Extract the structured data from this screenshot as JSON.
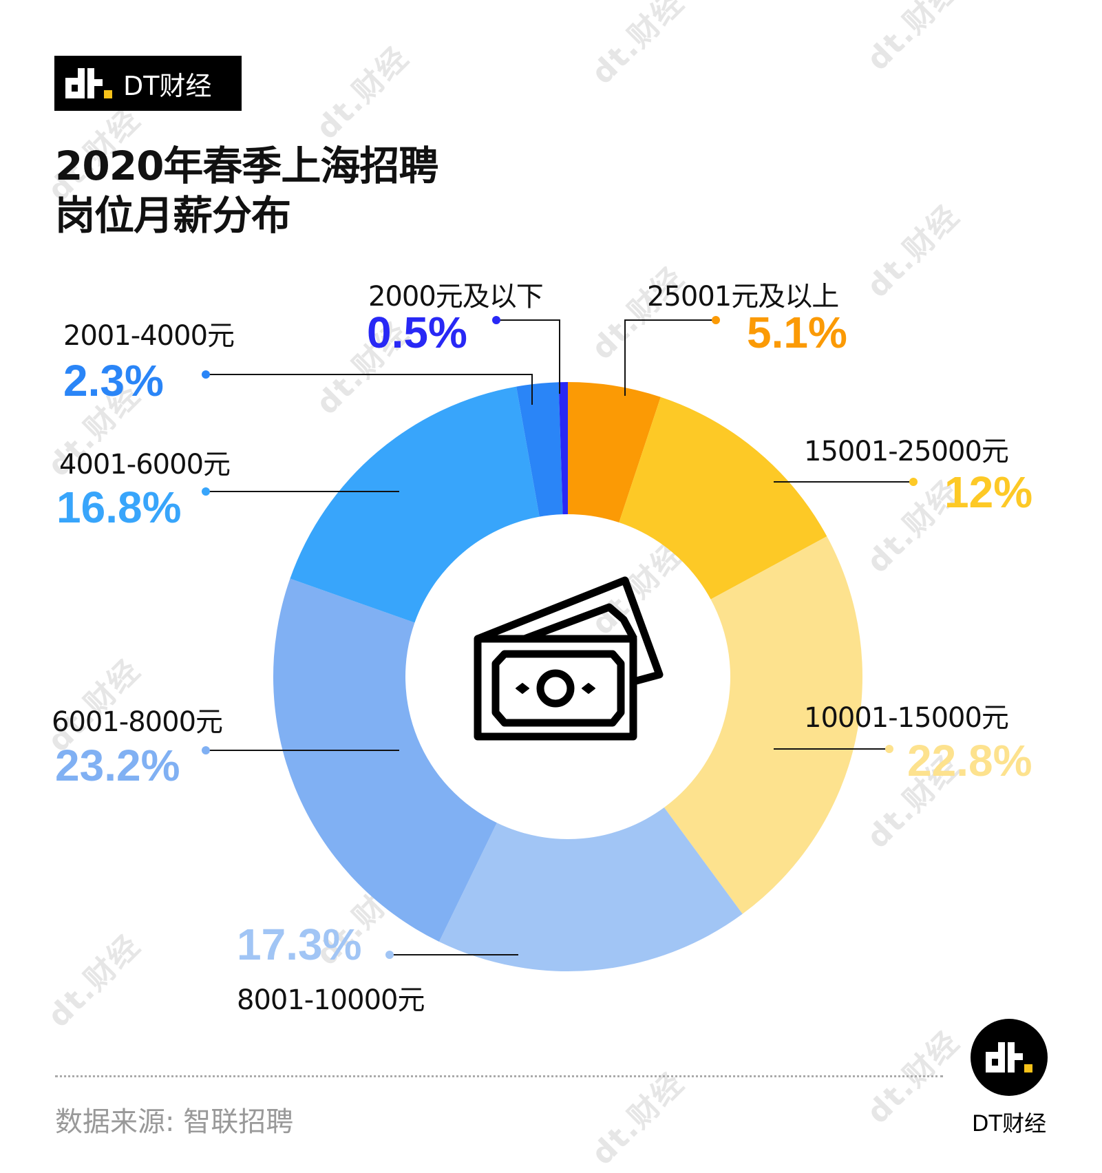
{
  "brand": {
    "name": "DT财经",
    "logo_accent": "#F7C21A"
  },
  "title": {
    "line1": "2020年春季上海招聘",
    "line2": "岗位月薪分布"
  },
  "footer": {
    "source": "数据来源: 智联招聘",
    "logo_caption": "DT财经"
  },
  "watermark": "dt.财经",
  "center_icon": "money-bills-icon",
  "segments": [
    {
      "label": "25001元及以上",
      "pct": "5.1%",
      "color": "#FB9A05"
    },
    {
      "label": "15001-25000元",
      "pct": "12%",
      "color": "#FDC926"
    },
    {
      "label": "10001-15000元",
      "pct": "22.8%",
      "color": "#FDE28E"
    },
    {
      "label": "8001-10000元",
      "pct": "17.3%",
      "color": "#A1C5F5"
    },
    {
      "label": "6001-8000元",
      "pct": "23.2%",
      "color": "#80B0F3"
    },
    {
      "label": "4001-6000元",
      "pct": "16.8%",
      "color": "#38A5FB"
    },
    {
      "label": "2001-4000元",
      "pct": "2.3%",
      "color": "#2A85F7"
    },
    {
      "label": "2000元及以下",
      "pct": "0.5%",
      "color": "#2828F5"
    }
  ],
  "chart_data": {
    "type": "pie",
    "subtype": "donut",
    "title": "2020年春季上海招聘岗位月薪分布",
    "categories": [
      "25001元及以上",
      "15001-25000元",
      "10001-15000元",
      "8001-10000元",
      "6001-8000元",
      "4001-6000元",
      "2001-4000元",
      "2000元及以下"
    ],
    "values": [
      5.1,
      12,
      22.8,
      17.3,
      23.2,
      16.8,
      2.3,
      0.5
    ],
    "unit": "%",
    "colors": [
      "#FB9A05",
      "#FDC926",
      "#FDE28E",
      "#A1C5F5",
      "#80B0F3",
      "#38A5FB",
      "#2A85F7",
      "#2828F5"
    ],
    "source": "智联招聘"
  }
}
